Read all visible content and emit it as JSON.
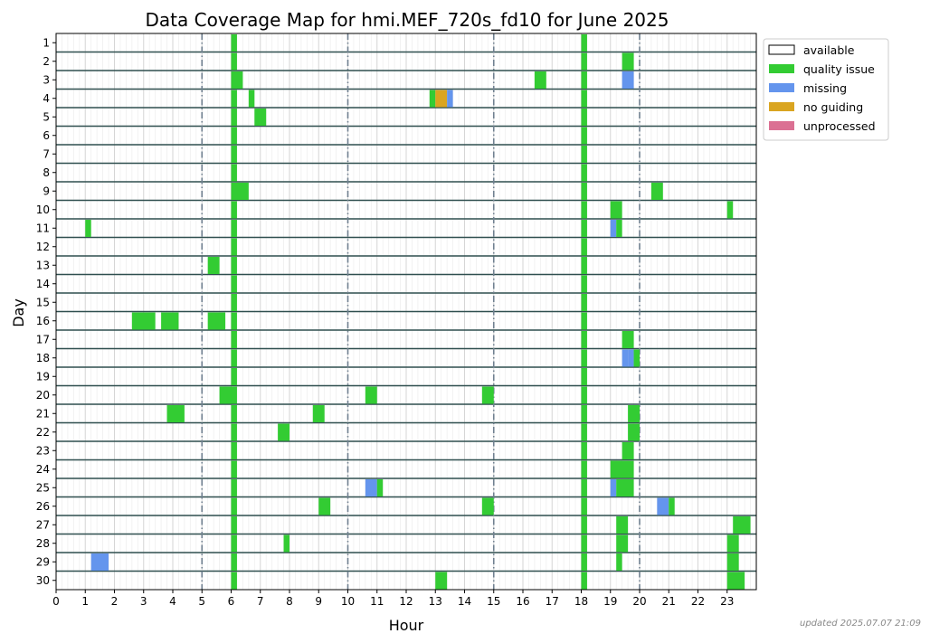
{
  "chart_data": {
    "type": "coverage-map",
    "title": "Data Coverage Map for hmi.MEF_720s_fd10 for June 2025",
    "xlabel": "Hour",
    "ylabel": "Day",
    "xlim": [
      0,
      24
    ],
    "x_ticks": [
      "0",
      "1",
      "2",
      "3",
      "4",
      "5",
      "6",
      "7",
      "8",
      "9",
      "10",
      "11",
      "12",
      "13",
      "14",
      "15",
      "16",
      "17",
      "18",
      "19",
      "20",
      "21",
      "22",
      "23"
    ],
    "y_ticks": [
      "1",
      "2",
      "3",
      "4",
      "5",
      "6",
      "7",
      "8",
      "9",
      "10",
      "11",
      "12",
      "13",
      "14",
      "15",
      "16",
      "17",
      "18",
      "19",
      "20",
      "21",
      "22",
      "23",
      "24",
      "25",
      "26",
      "27",
      "28",
      "29",
      "30"
    ],
    "reference_hours": [
      5,
      10,
      15,
      20
    ],
    "legend": {
      "placement": "upper-right-outside",
      "items": [
        {
          "key": "available",
          "label": "available",
          "color": "#ffffff"
        },
        {
          "key": "quality",
          "label": "quality issue",
          "color": "#33cc33"
        },
        {
          "key": "missing",
          "label": "missing",
          "color": "#6495ed"
        },
        {
          "key": "noguiding",
          "label": "no guiding",
          "color": "#daa520"
        },
        {
          "key": "unprocessed",
          "label": "unprocessed",
          "color": "#db7093"
        }
      ]
    },
    "intervals": [
      {
        "day": 1,
        "segments": [
          [
            6.0,
            6.2,
            "quality"
          ],
          [
            18.0,
            18.2,
            "quality"
          ]
        ]
      },
      {
        "day": 2,
        "segments": [
          [
            6.0,
            6.2,
            "quality"
          ],
          [
            18.0,
            18.2,
            "quality"
          ],
          [
            19.4,
            19.8,
            "quality"
          ]
        ]
      },
      {
        "day": 3,
        "segments": [
          [
            6.0,
            6.4,
            "quality"
          ],
          [
            16.4,
            16.8,
            "quality"
          ],
          [
            18.0,
            18.2,
            "quality"
          ],
          [
            19.4,
            19.8,
            "missing"
          ]
        ]
      },
      {
        "day": 4,
        "segments": [
          [
            6.0,
            6.2,
            "quality"
          ],
          [
            6.6,
            6.8,
            "quality"
          ],
          [
            12.8,
            13.0,
            "quality"
          ],
          [
            13.0,
            13.4,
            "noguiding"
          ],
          [
            13.4,
            13.6,
            "missing"
          ],
          [
            18.0,
            18.2,
            "quality"
          ]
        ]
      },
      {
        "day": 5,
        "segments": [
          [
            6.0,
            6.2,
            "quality"
          ],
          [
            6.8,
            7.2,
            "quality"
          ],
          [
            18.0,
            18.2,
            "quality"
          ]
        ]
      },
      {
        "day": 6,
        "segments": [
          [
            6.0,
            6.2,
            "quality"
          ],
          [
            18.0,
            18.2,
            "quality"
          ]
        ]
      },
      {
        "day": 7,
        "segments": [
          [
            6.0,
            6.2,
            "quality"
          ],
          [
            18.0,
            18.2,
            "quality"
          ]
        ]
      },
      {
        "day": 8,
        "segments": [
          [
            6.0,
            6.2,
            "quality"
          ],
          [
            18.0,
            18.2,
            "quality"
          ]
        ]
      },
      {
        "day": 9,
        "segments": [
          [
            6.0,
            6.6,
            "quality"
          ],
          [
            18.0,
            18.2,
            "quality"
          ],
          [
            20.4,
            20.8,
            "quality"
          ]
        ]
      },
      {
        "day": 10,
        "segments": [
          [
            6.0,
            6.2,
            "quality"
          ],
          [
            18.0,
            18.2,
            "quality"
          ],
          [
            19.0,
            19.4,
            "quality"
          ],
          [
            23.0,
            23.2,
            "quality"
          ]
        ]
      },
      {
        "day": 11,
        "segments": [
          [
            1.0,
            1.2,
            "quality"
          ],
          [
            6.0,
            6.2,
            "quality"
          ],
          [
            18.0,
            18.2,
            "quality"
          ],
          [
            19.0,
            19.2,
            "missing"
          ],
          [
            19.2,
            19.4,
            "quality"
          ]
        ]
      },
      {
        "day": 12,
        "segments": [
          [
            6.0,
            6.2,
            "quality"
          ],
          [
            18.0,
            18.2,
            "quality"
          ]
        ]
      },
      {
        "day": 13,
        "segments": [
          [
            5.2,
            5.6,
            "quality"
          ],
          [
            6.0,
            6.2,
            "quality"
          ],
          [
            18.0,
            18.2,
            "quality"
          ]
        ]
      },
      {
        "day": 14,
        "segments": [
          [
            6.0,
            6.2,
            "quality"
          ],
          [
            18.0,
            18.2,
            "quality"
          ]
        ]
      },
      {
        "day": 15,
        "segments": [
          [
            6.0,
            6.2,
            "quality"
          ],
          [
            18.0,
            18.2,
            "quality"
          ]
        ]
      },
      {
        "day": 16,
        "segments": [
          [
            2.6,
            3.4,
            "quality"
          ],
          [
            3.6,
            4.2,
            "quality"
          ],
          [
            5.2,
            5.8,
            "quality"
          ],
          [
            6.0,
            6.2,
            "quality"
          ],
          [
            18.0,
            18.2,
            "quality"
          ]
        ]
      },
      {
        "day": 17,
        "segments": [
          [
            6.0,
            6.2,
            "quality"
          ],
          [
            18.0,
            18.2,
            "quality"
          ],
          [
            19.4,
            19.8,
            "quality"
          ]
        ]
      },
      {
        "day": 18,
        "segments": [
          [
            6.0,
            6.2,
            "quality"
          ],
          [
            18.0,
            18.2,
            "quality"
          ],
          [
            19.4,
            19.6,
            "missing"
          ],
          [
            19.6,
            19.8,
            "missing"
          ],
          [
            19.8,
            20.0,
            "quality"
          ]
        ]
      },
      {
        "day": 19,
        "segments": [
          [
            6.0,
            6.2,
            "quality"
          ],
          [
            18.0,
            18.2,
            "quality"
          ]
        ]
      },
      {
        "day": 20,
        "segments": [
          [
            5.6,
            6.2,
            "quality"
          ],
          [
            10.6,
            11.0,
            "quality"
          ],
          [
            14.6,
            15.0,
            "quality"
          ],
          [
            18.0,
            18.2,
            "quality"
          ]
        ]
      },
      {
        "day": 21,
        "segments": [
          [
            3.8,
            4.4,
            "quality"
          ],
          [
            6.0,
            6.2,
            "quality"
          ],
          [
            8.8,
            9.2,
            "quality"
          ],
          [
            18.0,
            18.2,
            "quality"
          ],
          [
            19.6,
            20.0,
            "quality"
          ]
        ]
      },
      {
        "day": 22,
        "segments": [
          [
            6.0,
            6.2,
            "quality"
          ],
          [
            7.6,
            8.0,
            "quality"
          ],
          [
            18.0,
            18.2,
            "quality"
          ],
          [
            19.6,
            20.0,
            "quality"
          ]
        ]
      },
      {
        "day": 23,
        "segments": [
          [
            6.0,
            6.2,
            "quality"
          ],
          [
            18.0,
            18.2,
            "quality"
          ],
          [
            19.4,
            19.8,
            "quality"
          ]
        ]
      },
      {
        "day": 24,
        "segments": [
          [
            6.0,
            6.2,
            "quality"
          ],
          [
            18.0,
            18.2,
            "quality"
          ],
          [
            19.0,
            19.8,
            "quality"
          ]
        ]
      },
      {
        "day": 25,
        "segments": [
          [
            6.0,
            6.2,
            "quality"
          ],
          [
            10.6,
            11.0,
            "missing"
          ],
          [
            11.0,
            11.2,
            "quality"
          ],
          [
            18.0,
            18.2,
            "quality"
          ],
          [
            19.0,
            19.2,
            "missing"
          ],
          [
            19.2,
            19.8,
            "quality"
          ]
        ]
      },
      {
        "day": 26,
        "segments": [
          [
            6.0,
            6.2,
            "quality"
          ],
          [
            9.0,
            9.4,
            "quality"
          ],
          [
            14.6,
            15.0,
            "quality"
          ],
          [
            18.0,
            18.2,
            "quality"
          ],
          [
            20.6,
            21.0,
            "missing"
          ],
          [
            21.0,
            21.2,
            "quality"
          ]
        ]
      },
      {
        "day": 27,
        "segments": [
          [
            6.0,
            6.2,
            "quality"
          ],
          [
            18.0,
            18.2,
            "quality"
          ],
          [
            19.2,
            19.6,
            "quality"
          ],
          [
            23.2,
            23.8,
            "quality"
          ]
        ]
      },
      {
        "day": 28,
        "segments": [
          [
            6.0,
            6.2,
            "quality"
          ],
          [
            7.8,
            8.0,
            "quality"
          ],
          [
            18.0,
            18.2,
            "quality"
          ],
          [
            19.2,
            19.6,
            "quality"
          ],
          [
            23.0,
            23.4,
            "quality"
          ]
        ]
      },
      {
        "day": 29,
        "segments": [
          [
            1.2,
            1.8,
            "missing"
          ],
          [
            6.0,
            6.2,
            "quality"
          ],
          [
            18.0,
            18.2,
            "quality"
          ],
          [
            19.2,
            19.4,
            "quality"
          ],
          [
            23.0,
            23.4,
            "quality"
          ]
        ]
      },
      {
        "day": 30,
        "segments": [
          [
            6.0,
            6.2,
            "quality"
          ],
          [
            13.0,
            13.4,
            "quality"
          ],
          [
            18.0,
            18.2,
            "quality"
          ],
          [
            23.0,
            23.6,
            "quality"
          ]
        ]
      }
    ]
  },
  "footer": {
    "updated": "updated 2025.07.07 21:09"
  }
}
